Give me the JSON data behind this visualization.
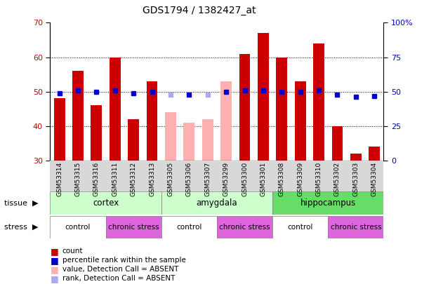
{
  "title": "GDS1794 / 1382427_at",
  "samples": [
    "GSM53314",
    "GSM53315",
    "GSM53316",
    "GSM53311",
    "GSM53312",
    "GSM53313",
    "GSM53305",
    "GSM53306",
    "GSM53307",
    "GSM53299",
    "GSM53300",
    "GSM53301",
    "GSM53308",
    "GSM53309",
    "GSM53310",
    "GSM53302",
    "GSM53303",
    "GSM53304"
  ],
  "bar_values": [
    48,
    56,
    46,
    60,
    42,
    53,
    44,
    41,
    42,
    53,
    61,
    67,
    60,
    53,
    64,
    40,
    32,
    34
  ],
  "bar_absent": [
    false,
    false,
    false,
    false,
    false,
    false,
    true,
    true,
    true,
    true,
    false,
    false,
    false,
    false,
    false,
    false,
    false,
    false
  ],
  "dot_values": [
    49,
    51,
    50,
    51,
    49,
    50,
    48,
    48,
    48,
    50,
    51,
    51,
    50,
    50,
    51,
    48,
    46,
    47
  ],
  "dot_absent": [
    false,
    false,
    false,
    false,
    false,
    false,
    true,
    false,
    true,
    false,
    false,
    false,
    false,
    false,
    false,
    false,
    false,
    false
  ],
  "ylim_left": [
    30,
    70
  ],
  "ylim_right": [
    0,
    100
  ],
  "yticks_left": [
    30,
    40,
    50,
    60,
    70
  ],
  "yticks_right": [
    0,
    25,
    50,
    75,
    100
  ],
  "ytick_labels_right": [
    "0",
    "25",
    "50",
    "75",
    "100%"
  ],
  "bar_color_normal": "#cc0000",
  "bar_color_absent": "#ffb0b0",
  "dot_color_normal": "#0000cc",
  "dot_color_absent": "#aaaaee",
  "tissue_groups": [
    {
      "label": "cortex",
      "start": 0,
      "end": 6,
      "color": "#ccffcc"
    },
    {
      "label": "amygdala",
      "start": 6,
      "end": 12,
      "color": "#ccffcc"
    },
    {
      "label": "hippocampus",
      "start": 12,
      "end": 18,
      "color": "#66dd66"
    }
  ],
  "stress_groups": [
    {
      "label": "control",
      "start": 0,
      "end": 3,
      "color": "#ffffff"
    },
    {
      "label": "chronic stress",
      "start": 3,
      "end": 6,
      "color": "#dd66dd"
    },
    {
      "label": "control",
      "start": 6,
      "end": 9,
      "color": "#ffffff"
    },
    {
      "label": "chronic stress",
      "start": 9,
      "end": 12,
      "color": "#dd66dd"
    },
    {
      "label": "control",
      "start": 12,
      "end": 15,
      "color": "#ffffff"
    },
    {
      "label": "chronic stress",
      "start": 15,
      "end": 18,
      "color": "#dd66dd"
    }
  ],
  "legend_items": [
    {
      "label": "count",
      "color": "#cc0000"
    },
    {
      "label": "percentile rank within the sample",
      "color": "#0000cc"
    },
    {
      "label": "value, Detection Call = ABSENT",
      "color": "#ffb0b0"
    },
    {
      "label": "rank, Detection Call = ABSENT",
      "color": "#aaaaee"
    }
  ],
  "grid_color": "black",
  "background_color": "#ffffff",
  "left_axis_color": "#cc0000",
  "right_axis_color": "#0000cc",
  "xticklabel_bg": "#d8d8d8"
}
